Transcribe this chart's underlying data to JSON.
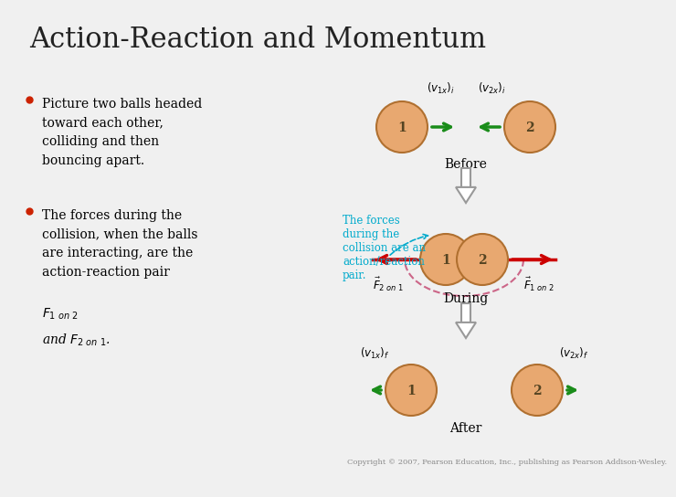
{
  "title": "Action-Reaction and Momentum",
  "title_fontsize": 22,
  "title_color": "#222222",
  "background_color": "#f0f0f0",
  "ball_color": "#e8a870",
  "ball_edge_color": "#b07030",
  "arrow_green": "#1a8c1a",
  "arrow_red": "#cc0000",
  "annotation_color": "#00aacc",
  "copyright": "Copyright © 2007, Pearson Education, Inc., publishing as Pearson Addison-Wesley."
}
